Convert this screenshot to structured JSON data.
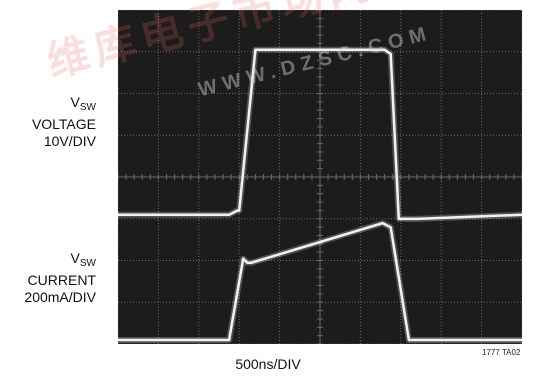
{
  "chart_data": {
    "type": "line",
    "grid": true,
    "x_axis": {
      "scale_label": "500ns/DIV",
      "divisions": 10
    },
    "y_axis": {
      "divisions": 8
    },
    "channels": [
      {
        "label_top": "V",
        "label_sub": "SW",
        "label_line2": "VOLTAGE",
        "label_line3": "10V/DIV",
        "x_div": [
          0,
          2.75,
          2.95,
          3.0,
          3.4,
          6.6,
          6.75,
          6.95,
          7.4,
          10
        ],
        "y_div": [
          3.0,
          3.0,
          3.1,
          3.1,
          6.95,
          6.95,
          6.85,
          2.9,
          2.9,
          3.0
        ]
      },
      {
        "label_top": "V",
        "label_sub": "SW",
        "label_line2": "CURRENT",
        "label_line3": "200mA/DIV",
        "x_div": [
          0,
          2.75,
          3.1,
          3.2,
          3.3,
          6.55,
          6.75,
          7.2,
          10
        ],
        "y_div": [
          0,
          0,
          1.95,
          1.85,
          1.85,
          2.8,
          2.7,
          0,
          0
        ]
      }
    ],
    "figure_id": "1777 TA02"
  },
  "watermark": {
    "text_cn": "维库电子市场网",
    "text_url": "WWW.DZSC.COM"
  },
  "colors": {
    "screen": "#1c1c1c",
    "grid": "#6a6a6a",
    "trace": "#f2f2f2",
    "watermark": "#e46a5a"
  }
}
